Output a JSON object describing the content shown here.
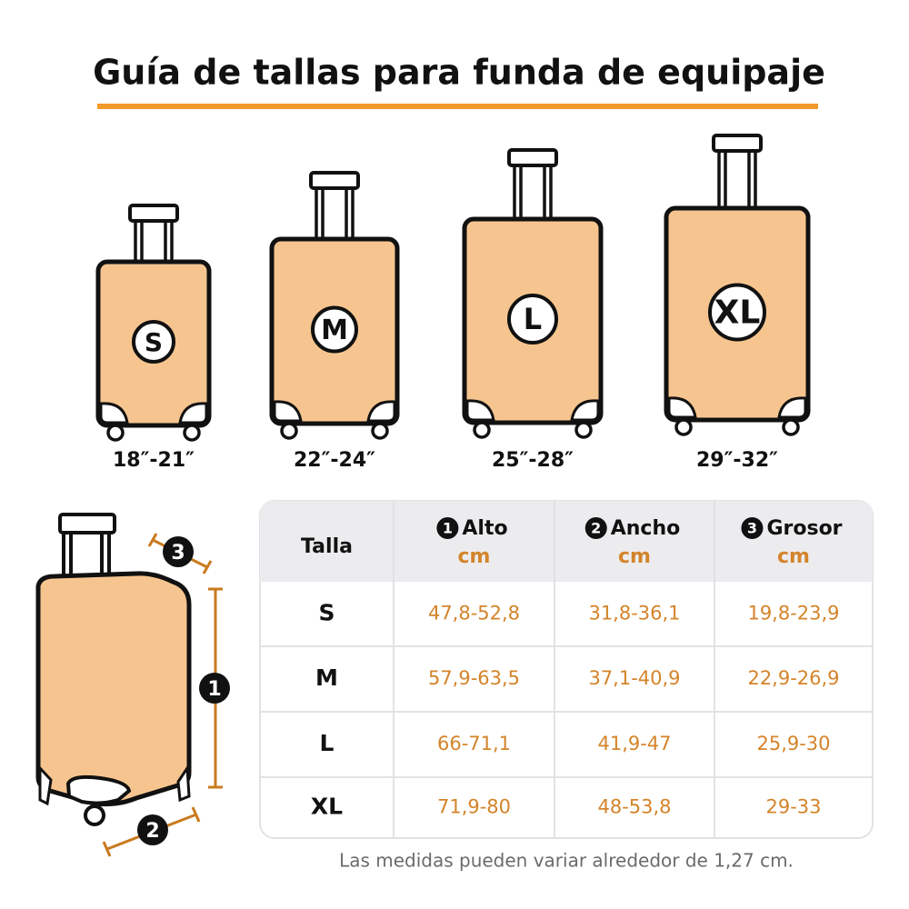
{
  "title": "Guía de tallas para funda de equipaje",
  "suitcases": [
    {
      "size": "S",
      "range": "18″-21″"
    },
    {
      "size": "M",
      "range": "22″-24″"
    },
    {
      "size": "L",
      "range": "25″-28″"
    },
    {
      "size": "XL",
      "range": "29″-32″"
    }
  ],
  "diagram": {
    "markers": [
      "1",
      "2",
      "3"
    ]
  },
  "table": {
    "header": {
      "size": "Talla",
      "columns": [
        {
          "number": "1",
          "name": "Alto",
          "unit": "cm"
        },
        {
          "number": "2",
          "name": "Ancho",
          "unit": "cm"
        },
        {
          "number": "3",
          "name": "Grosor",
          "unit": "cm"
        }
      ]
    },
    "rows": [
      [
        "S",
        "47,8-52,8",
        "31,8-36,1",
        "19,8-23,9"
      ],
      [
        "M",
        "57,9-63,5",
        "37,1-40,9",
        "22,9-26,9"
      ],
      [
        "L",
        "66-71,1",
        "41,9-47",
        "25,9-30"
      ],
      [
        "XL",
        "71,9-80",
        "48-53,8",
        "29-33"
      ]
    ]
  },
  "note": "Las medidas pueden variar alrededor de 1,27 cm."
}
